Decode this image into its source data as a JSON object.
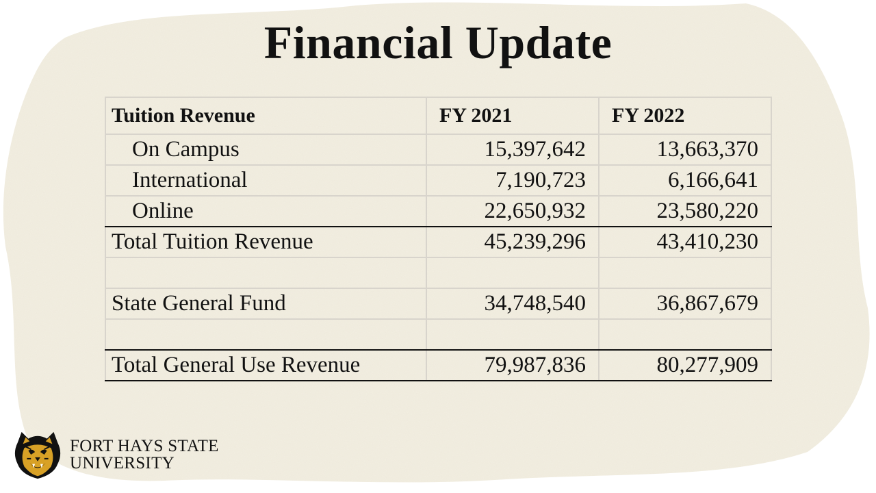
{
  "slide": {
    "title": "Financial Update"
  },
  "table": {
    "headers": [
      "Tuition Revenue",
      "FY 2021",
      "FY 2022"
    ],
    "rows": [
      {
        "label": "On Campus",
        "fy2021": "15,397,642",
        "fy2022": "13,663,370"
      },
      {
        "label": "International",
        "fy2021": "7,190,723",
        "fy2022": "6,166,641"
      },
      {
        "label": "Online",
        "fy2021": "22,650,932",
        "fy2022": "23,580,220"
      },
      {
        "label": "Total Tuition Revenue",
        "fy2021": "45,239,296",
        "fy2022": "43,410,230"
      },
      {
        "label": "",
        "fy2021": "",
        "fy2022": ""
      },
      {
        "label": "State General Fund",
        "fy2021": "34,748,540",
        "fy2022": "36,867,679"
      },
      {
        "label": "",
        "fy2021": "",
        "fy2022": ""
      },
      {
        "label": "Total General Use Revenue",
        "fy2021": "79,987,836",
        "fy2022": "80,277,909"
      }
    ]
  },
  "branding": {
    "line1": "FORT HAYS STATE",
    "line2": "UNIVERSITY",
    "logo_icon": "tiger-mascot-icon",
    "accent_color": "#d8a126",
    "logo_color": "#111111"
  },
  "theme": {
    "paper_color": "#f3efe2",
    "text_color": "#111111",
    "grid_color": "#d8d4cc"
  }
}
